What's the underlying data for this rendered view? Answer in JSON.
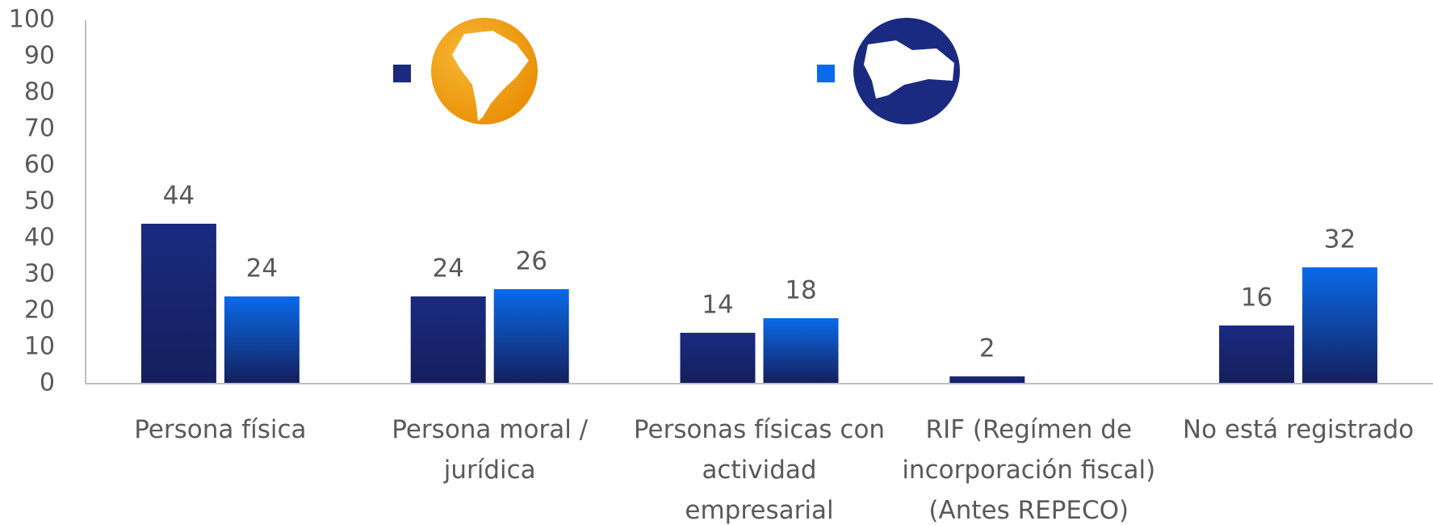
{
  "chart_data": {
    "type": "bar",
    "categories": [
      "Persona física",
      "Persona moral / jurídica",
      "Personas físicas con actividad empresarial",
      "RIF (Regímen de incorporación fiscal) (Antes REPECO)",
      "No está registrado"
    ],
    "series": [
      {
        "color": "#1a2a80",
        "values": [
          44,
          24,
          14,
          2,
          16
        ]
      },
      {
        "color": "#0a6ae8",
        "values": [
          24,
          26,
          18,
          null,
          32
        ]
      }
    ],
    "ylim": [
      0,
      100
    ],
    "yticks": [
      0,
      10,
      20,
      30,
      40,
      50,
      60,
      70,
      80,
      90,
      100
    ],
    "grid": false
  }
}
